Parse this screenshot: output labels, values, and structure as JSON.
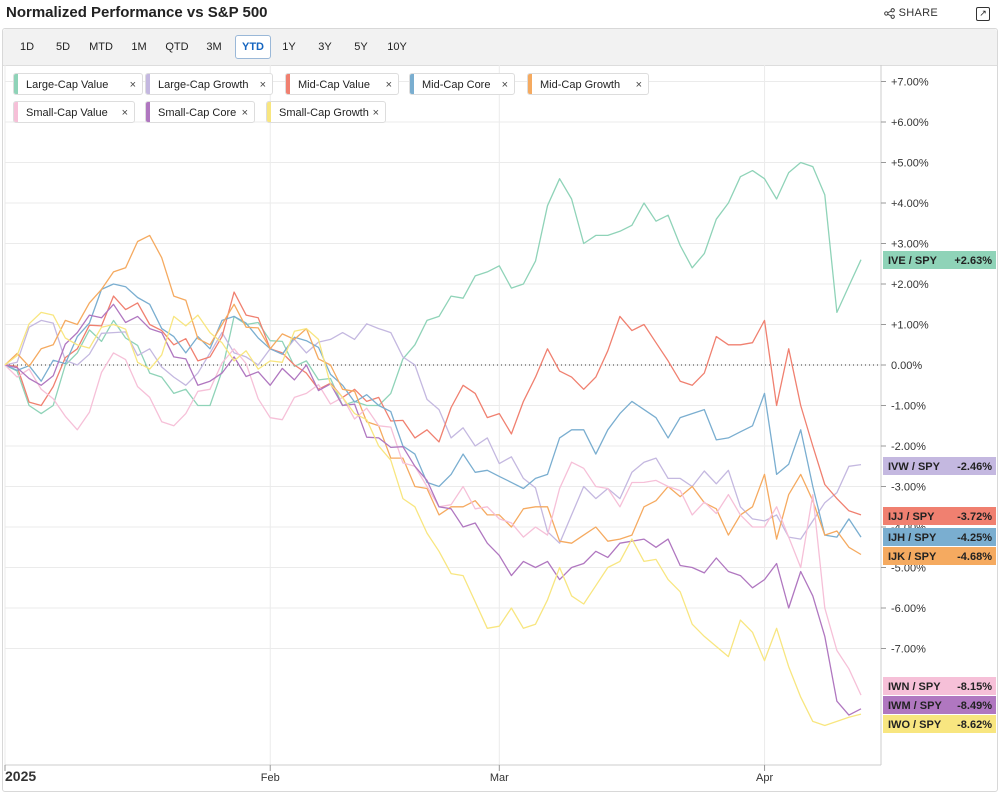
{
  "header": {
    "title": "Normalized Performance vs S&P 500",
    "share_label": "SHARE"
  },
  "ranges": [
    "1D",
    "5D",
    "MTD",
    "1M",
    "QTD",
    "3M",
    "YTD",
    "1Y",
    "3Y",
    "5Y",
    "10Y"
  ],
  "active_range": "YTD",
  "chart_data": {
    "type": "line",
    "ylim": [
      -9.0,
      7.0
    ],
    "y_ticks": [
      "+7.00%",
      "+6.00%",
      "+5.00%",
      "+4.00%",
      "+3.00%",
      "+2.00%",
      "+1.00%",
      "0.00%",
      "-1.00%",
      "-2.00%",
      "-3.00%",
      "-4.00%",
      "-5.00%",
      "-6.00%",
      "-7.00%"
    ],
    "y_tick_values": [
      7,
      6,
      5,
      4,
      3,
      2,
      1,
      0,
      -1,
      -2,
      -3,
      -4,
      -5,
      -6,
      -7
    ],
    "x_labels": [
      {
        "label": "2025",
        "day": 0
      },
      {
        "label": "Feb",
        "day": 22
      },
      {
        "label": "Mar",
        "day": 41
      },
      {
        "label": "Apr",
        "day": 63
      }
    ],
    "n_days": 72,
    "series": [
      {
        "name": "Large-Cap Value",
        "ticker": "IVE / SPY",
        "value": "+2.63%",
        "color": "#8fd3b8",
        "last": 2.63,
        "anchors": [
          [
            0,
            0
          ],
          [
            3,
            -1.2
          ],
          [
            6,
            0.3
          ],
          [
            9,
            1.1
          ],
          [
            12,
            -0.2
          ],
          [
            14,
            -0.7
          ],
          [
            17,
            -1.0
          ],
          [
            19,
            1.2
          ],
          [
            22,
            0.6
          ],
          [
            25,
            0.1
          ],
          [
            28,
            -1.0
          ],
          [
            31,
            -1.0
          ],
          [
            34,
            0.5
          ],
          [
            37,
            1.7
          ],
          [
            40,
            2.3
          ],
          [
            43,
            2.0
          ],
          [
            46,
            4.6
          ],
          [
            48,
            3.0
          ],
          [
            51,
            3.3
          ],
          [
            53,
            4.0
          ],
          [
            55,
            3.7
          ],
          [
            57,
            2.4
          ],
          [
            59,
            3.6
          ],
          [
            62,
            4.8
          ],
          [
            64,
            4.1
          ],
          [
            66,
            5.0
          ],
          [
            68,
            4.2
          ],
          [
            69,
            1.3
          ],
          [
            71,
            2.6
          ]
        ]
      },
      {
        "name": "Large-Cap Growth",
        "ticker": "IVW / SPY",
        "value": "-2.46%",
        "color": "#c4b8e0",
        "last": -2.46,
        "anchors": [
          [
            0,
            0
          ],
          [
            3,
            1.1
          ],
          [
            6,
            0.0
          ],
          [
            9,
            0.8
          ],
          [
            12,
            0.4
          ],
          [
            14,
            -0.3
          ],
          [
            16,
            -0.2
          ],
          [
            18,
            0.8
          ],
          [
            20,
            0.2
          ],
          [
            22,
            0.4
          ],
          [
            25,
            0.3
          ],
          [
            28,
            0.8
          ],
          [
            31,
            0.9
          ],
          [
            34,
            0.0
          ],
          [
            37,
            -1.8
          ],
          [
            40,
            -1.8
          ],
          [
            43,
            -2.8
          ],
          [
            46,
            -4.4
          ],
          [
            48,
            -3.0
          ],
          [
            51,
            -3.3
          ],
          [
            53,
            -2.4
          ],
          [
            55,
            -2.8
          ],
          [
            57,
            -3.0
          ],
          [
            60,
            -2.6
          ],
          [
            62,
            -3.8
          ],
          [
            64,
            -3.7
          ],
          [
            66,
            -4.3
          ],
          [
            68,
            -3.4
          ],
          [
            70,
            -2.5
          ],
          [
            71,
            -2.46
          ]
        ]
      },
      {
        "name": "Mid-Cap Value",
        "ticker": "IJJ / SPY",
        "value": "-3.72%",
        "color": "#f08070",
        "last": -3.72,
        "anchors": [
          [
            0,
            0
          ],
          [
            3,
            -1.0
          ],
          [
            6,
            0.4
          ],
          [
            9,
            1.7
          ],
          [
            12,
            1.0
          ],
          [
            14,
            0.5
          ],
          [
            17,
            0.2
          ],
          [
            19,
            1.8
          ],
          [
            22,
            0.4
          ],
          [
            25,
            -0.2
          ],
          [
            28,
            -0.8
          ],
          [
            31,
            -0.8
          ],
          [
            34,
            -1.8
          ],
          [
            36,
            -1.9
          ],
          [
            38,
            -0.5
          ],
          [
            40,
            -1.3
          ],
          [
            42,
            -1.7
          ],
          [
            45,
            0.4
          ],
          [
            47,
            -0.3
          ],
          [
            49,
            -0.3
          ],
          [
            51,
            1.2
          ],
          [
            53,
            1.0
          ],
          [
            55,
            0.1
          ],
          [
            57,
            -0.5
          ],
          [
            59,
            0.7
          ],
          [
            61,
            0.5
          ],
          [
            63,
            1.1
          ],
          [
            64,
            -1.0
          ],
          [
            65,
            0.4
          ],
          [
            67,
            -2.0
          ],
          [
            69,
            -3.3
          ],
          [
            71,
            -3.7
          ]
        ]
      },
      {
        "name": "Mid-Cap Core",
        "ticker": "IJH / SPY",
        "value": "-4.25%",
        "color": "#7aaed0",
        "last": -4.25,
        "anchors": [
          [
            0,
            0
          ],
          [
            3,
            -0.4
          ],
          [
            6,
            0.7
          ],
          [
            9,
            2.0
          ],
          [
            12,
            1.5
          ],
          [
            14,
            0.7
          ],
          [
            17,
            0.4
          ],
          [
            19,
            1.2
          ],
          [
            22,
            0.4
          ],
          [
            25,
            0.6
          ],
          [
            28,
            -0.5
          ],
          [
            31,
            -1.0
          ],
          [
            34,
            -2.2
          ],
          [
            36,
            -3.0
          ],
          [
            38,
            -2.2
          ],
          [
            40,
            -2.6
          ],
          [
            42,
            -2.9
          ],
          [
            44,
            -2.8
          ],
          [
            47,
            -1.6
          ],
          [
            49,
            -2.2
          ],
          [
            51,
            -1.2
          ],
          [
            53,
            -1.1
          ],
          [
            55,
            -1.8
          ],
          [
            57,
            -1.2
          ],
          [
            60,
            -1.8
          ],
          [
            62,
            -1.5
          ],
          [
            63,
            -0.7
          ],
          [
            64,
            -2.7
          ],
          [
            66,
            -1.6
          ],
          [
            68,
            -4.2
          ],
          [
            70,
            -3.8
          ],
          [
            71,
            -4.25
          ]
        ]
      },
      {
        "name": "Mid-Cap Growth",
        "ticker": "IJK / SPY",
        "value": "-4.68%",
        "color": "#f5aa60",
        "last": -4.68,
        "anchors": [
          [
            0,
            0
          ],
          [
            3,
            0.4
          ],
          [
            6,
            1.0
          ],
          [
            9,
            2.3
          ],
          [
            12,
            3.2
          ],
          [
            14,
            1.7
          ],
          [
            17,
            0.5
          ],
          [
            19,
            1.5
          ],
          [
            22,
            0.4
          ],
          [
            25,
            0.9
          ],
          [
            28,
            -0.6
          ],
          [
            31,
            -1.5
          ],
          [
            34,
            -3.0
          ],
          [
            36,
            -3.7
          ],
          [
            38,
            -3.5
          ],
          [
            40,
            -3.7
          ],
          [
            42,
            -4.0
          ],
          [
            44,
            -3.5
          ],
          [
            47,
            -4.4
          ],
          [
            49,
            -4.0
          ],
          [
            51,
            -4.3
          ],
          [
            53,
            -3.5
          ],
          [
            55,
            -3.0
          ],
          [
            57,
            -3.0
          ],
          [
            60,
            -4.2
          ],
          [
            62,
            -3.5
          ],
          [
            63,
            -2.7
          ],
          [
            64,
            -4.3
          ],
          [
            66,
            -2.7
          ],
          [
            68,
            -4.2
          ],
          [
            70,
            -4.5
          ],
          [
            71,
            -4.68
          ]
        ]
      },
      {
        "name": "Small-Cap Value",
        "ticker": "IWN / SPY",
        "value": "-8.15%",
        "color": "#f6c0d8",
        "last": -8.15,
        "anchors": [
          [
            0,
            0
          ],
          [
            3,
            -0.6
          ],
          [
            6,
            -1.6
          ],
          [
            9,
            0.3
          ],
          [
            12,
            -0.8
          ],
          [
            14,
            -1.5
          ],
          [
            17,
            -0.6
          ],
          [
            19,
            0.4
          ],
          [
            22,
            -1.3
          ],
          [
            25,
            -0.7
          ],
          [
            28,
            -0.8
          ],
          [
            31,
            -1.5
          ],
          [
            34,
            -2.5
          ],
          [
            36,
            -3.5
          ],
          [
            38,
            -3.0
          ],
          [
            40,
            -3.5
          ],
          [
            42,
            -3.9
          ],
          [
            45,
            -4.2
          ],
          [
            47,
            -2.4
          ],
          [
            49,
            -3.0
          ],
          [
            51,
            -3.5
          ],
          [
            53,
            -2.9
          ],
          [
            55,
            -3.0
          ],
          [
            57,
            -3.7
          ],
          [
            60,
            -3.2
          ],
          [
            62,
            -4.0
          ],
          [
            64,
            -3.5
          ],
          [
            66,
            -5.0
          ],
          [
            67,
            -3.2
          ],
          [
            68,
            -6.0
          ],
          [
            70,
            -7.5
          ],
          [
            71,
            -8.15
          ]
        ]
      },
      {
        "name": "Small-Cap Core",
        "ticker": "IWM / SPY",
        "value": "-8.49%",
        "color": "#b077c0",
        "last": -8.49,
        "anchors": [
          [
            0,
            0
          ],
          [
            3,
            -0.5
          ],
          [
            6,
            0.8
          ],
          [
            9,
            1.5
          ],
          [
            12,
            0.9
          ],
          [
            14,
            0.2
          ],
          [
            17,
            -0.4
          ],
          [
            19,
            0.2
          ],
          [
            22,
            -0.5
          ],
          [
            25,
            0.0
          ],
          [
            28,
            -1.0
          ],
          [
            31,
            -1.8
          ],
          [
            34,
            -2.5
          ],
          [
            36,
            -3.5
          ],
          [
            38,
            -4.0
          ],
          [
            40,
            -4.4
          ],
          [
            42,
            -5.2
          ],
          [
            44,
            -5.0
          ],
          [
            47,
            -5.0
          ],
          [
            49,
            -4.6
          ],
          [
            51,
            -4.4
          ],
          [
            53,
            -4.3
          ],
          [
            55,
            -4.3
          ],
          [
            57,
            -5.0
          ],
          [
            60,
            -5.1
          ],
          [
            62,
            -5.5
          ],
          [
            63,
            -5.3
          ],
          [
            64,
            -4.9
          ],
          [
            65,
            -6.0
          ],
          [
            66,
            -5.1
          ],
          [
            68,
            -6.7
          ],
          [
            69,
            -8.3
          ],
          [
            71,
            -8.49
          ]
        ]
      },
      {
        "name": "Small-Cap Growth",
        "ticker": "IWO / SPY",
        "value": "-8.62%",
        "color": "#f8e680",
        "last": -8.62,
        "anchors": [
          [
            0,
            0
          ],
          [
            3,
            1.3
          ],
          [
            6,
            0.5
          ],
          [
            9,
            1.0
          ],
          [
            12,
            -0.1
          ],
          [
            14,
            1.2
          ],
          [
            17,
            0.8
          ],
          [
            19,
            0.1
          ],
          [
            22,
            0.1
          ],
          [
            25,
            0.9
          ],
          [
            28,
            -0.8
          ],
          [
            31,
            -2.0
          ],
          [
            34,
            -3.5
          ],
          [
            36,
            -4.6
          ],
          [
            38,
            -5.2
          ],
          [
            40,
            -6.5
          ],
          [
            42,
            -6.0
          ],
          [
            44,
            -6.4
          ],
          [
            46,
            -5.0
          ],
          [
            48,
            -5.9
          ],
          [
            50,
            -5.0
          ],
          [
            52,
            -4.3
          ],
          [
            54,
            -4.8
          ],
          [
            56,
            -5.6
          ],
          [
            58,
            -6.7
          ],
          [
            60,
            -7.2
          ],
          [
            61,
            -6.3
          ],
          [
            62,
            -6.6
          ],
          [
            63,
            -7.3
          ],
          [
            64,
            -6.5
          ],
          [
            66,
            -8.2
          ],
          [
            68,
            -8.9
          ],
          [
            70,
            -8.7
          ],
          [
            71,
            -8.62
          ]
        ]
      }
    ]
  }
}
